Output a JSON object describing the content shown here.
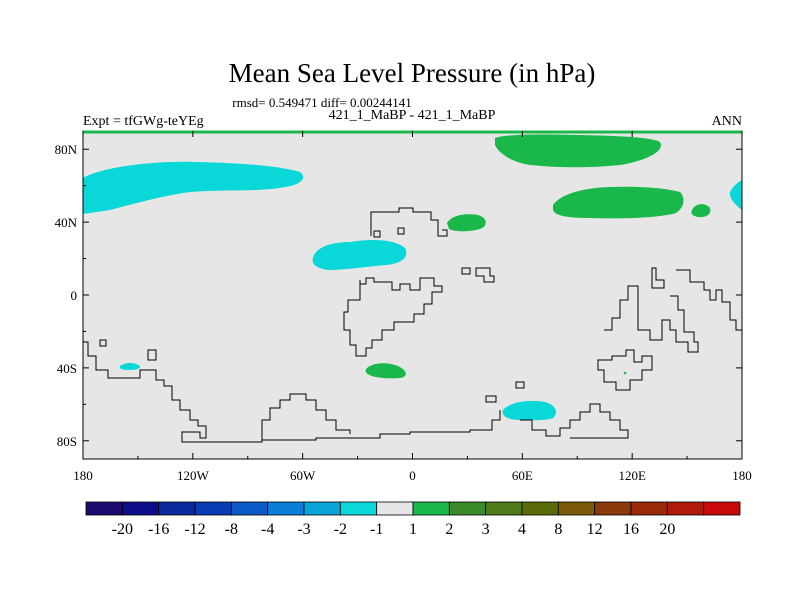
{
  "chart_data": {
    "type": "heatmap",
    "title": "Mean Sea Level Pressure (in hPa)",
    "subtitle": "rmsd= 0.549471 diff= 0.00244141",
    "left_label": "Expt = tfGWg-teYEg",
    "center_label": "421_1_MaBP - 421_1_MaBP",
    "right_label": "ANN",
    "x_ticks": [
      "180",
      "120W",
      "60W",
      "0",
      "60E",
      "120E",
      "180"
    ],
    "y_ticks": [
      "80N",
      "40N",
      "0",
      "40S",
      "80S"
    ],
    "xlim": [
      -180,
      180
    ],
    "ylim": [
      -90,
      90
    ],
    "background_color": "#e6e6e6",
    "colorbar": {
      "colors": [
        "#1b0a6e",
        "#0d0d8a",
        "#0a2a9e",
        "#0a3db5",
        "#0a5ac8",
        "#0a7ed8",
        "#0aa4d8",
        "#0ad8d8",
        "#e6e6e6",
        "#1ab84a",
        "#3a8a2a",
        "#4e7a1a",
        "#5a6a0a",
        "#7a5a0a",
        "#8a3a0a",
        "#9a2a0a",
        "#b01a0a",
        "#c80a0a"
      ],
      "labels": [
        "-20",
        "-16",
        "-12",
        "-8",
        "-4",
        "-3",
        "-2",
        "-1",
        "1",
        "2",
        "3",
        "4",
        "8",
        "12",
        "16",
        "20"
      ]
    },
    "anomaly_regions": [
      {
        "name": "north-pacific-negative",
        "sign": "negative",
        "level": "-2 to -1",
        "color": "#0ad8d8"
      },
      {
        "name": "north-atlantic-negative",
        "sign": "negative",
        "level": "-2 to -1",
        "color": "#0ad8d8"
      },
      {
        "name": "south-pacific-negative",
        "sign": "negative",
        "level": "-2 to -1",
        "color": "#0ad8d8"
      },
      {
        "name": "southern-ocean-negative",
        "sign": "negative",
        "level": "-2 to -1",
        "color": "#0ad8d8"
      },
      {
        "name": "east-edge-negative",
        "sign": "negative",
        "level": "-2 to -1",
        "color": "#0ad8d8"
      },
      {
        "name": "arctic-positive",
        "sign": "positive",
        "level": "1 to 2",
        "color": "#1ab84a"
      },
      {
        "name": "central-asia-positive",
        "sign": "positive",
        "level": "1 to 2",
        "color": "#1ab84a"
      },
      {
        "name": "east-asia-positive",
        "sign": "positive",
        "level": "1 to 2",
        "color": "#1ab84a"
      },
      {
        "name": "pacific-small-positive",
        "sign": "positive",
        "level": "1 to 2",
        "color": "#1ab84a"
      },
      {
        "name": "south-atlantic-positive",
        "sign": "positive",
        "level": "1 to 2",
        "color": "#1ab84a"
      }
    ]
  }
}
